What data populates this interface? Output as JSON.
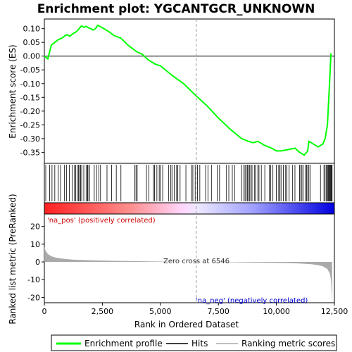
{
  "chart_data": {
    "type": "line",
    "title": "Enrichment plot: YGCANTGCR_UNKNOWN",
    "ylabel_top": "Enrichment score (ES)",
    "ylabel_bottom": "Ranked list metric (PreRanked)",
    "xlabel": "Rank in Ordered Dataset",
    "x_range": [
      0,
      12500
    ],
    "es_ylim": [
      -0.39,
      0.135
    ],
    "es_yticks": [
      "0.10",
      "0.05",
      "0.00",
      "-0.05",
      "-0.10",
      "-0.15",
      "-0.20",
      "-0.25",
      "-0.30",
      "-0.35"
    ],
    "es_ytick_values": [
      0.1,
      0.05,
      0.0,
      -0.05,
      -0.1,
      -0.15,
      -0.2,
      -0.25,
      -0.3,
      -0.35
    ],
    "metric_ylim": [
      -23,
      27
    ],
    "metric_yticks": [
      "20",
      "10",
      "0",
      "-10",
      "-20"
    ],
    "metric_ytick_values": [
      20,
      10,
      0,
      -10,
      -20
    ],
    "xticks": [
      "0",
      "2,500",
      "5,000",
      "7,500",
      "10,000",
      "12,500"
    ],
    "xtick_values": [
      0,
      2500,
      5000,
      7500,
      10000,
      12500
    ],
    "enrichment_profile": {
      "x": [
        0,
        150,
        300,
        450,
        600,
        750,
        900,
        1000,
        1100,
        1200,
        1300,
        1400,
        1500,
        1600,
        1700,
        1800,
        1900,
        2000,
        2100,
        2200,
        2300,
        2400,
        2600,
        2800,
        3000,
        3300,
        3600,
        4000,
        4200,
        4500,
        4800,
        5000,
        5500,
        6000,
        6546,
        7000,
        7500,
        8000,
        8500,
        8800,
        9000,
        9200,
        9500,
        9800,
        10000,
        10200,
        10500,
        10800,
        11000,
        11200,
        11350,
        11400,
        11600,
        11800,
        12000,
        12100,
        12200,
        12280,
        12350
      ],
      "es": [
        0.0,
        -0.01,
        0.04,
        0.05,
        0.06,
        0.065,
        0.075,
        0.078,
        0.072,
        0.08,
        0.085,
        0.09,
        0.1,
        0.11,
        0.105,
        0.108,
        0.103,
        0.1,
        0.095,
        0.1,
        0.112,
        0.108,
        0.098,
        0.088,
        0.075,
        0.065,
        0.04,
        0.015,
        0.008,
        -0.015,
        -0.03,
        -0.035,
        -0.07,
        -0.1,
        -0.145,
        -0.18,
        -0.225,
        -0.265,
        -0.3,
        -0.31,
        -0.315,
        -0.31,
        -0.325,
        -0.335,
        -0.345,
        -0.345,
        -0.34,
        -0.335,
        -0.35,
        -0.36,
        -0.345,
        -0.31,
        -0.32,
        -0.33,
        -0.32,
        -0.3,
        -0.25,
        -0.12,
        0.01
      ]
    },
    "hits_ranks": [
      60,
      230,
      330,
      450,
      600,
      700,
      860,
      960,
      1080,
      1200,
      1300,
      1350,
      1420,
      1470,
      1520,
      1560,
      1610,
      1700,
      1800,
      1860,
      1880,
      1950,
      2150,
      2250,
      2350,
      2420,
      2700,
      2900,
      3100,
      3300,
      3900,
      3950,
      4000,
      4400,
      4500,
      4700,
      4750,
      4850,
      4950,
      5000,
      5100,
      5350,
      5450,
      5500,
      5600,
      5700,
      5750,
      5850,
      6100,
      6350,
      6400,
      6500,
      6600,
      6700,
      6950,
      7050,
      7200,
      7450,
      7550,
      7850,
      7950,
      8100,
      8200,
      8500,
      8600,
      8650,
      8700,
      8750,
      8800,
      8850,
      8900,
      8950,
      9050,
      9100,
      9200,
      9250,
      9350,
      9500,
      9700,
      9750,
      9850,
      10000,
      10100,
      10150,
      10200,
      10300,
      10400,
      10450,
      10550,
      10700,
      10800,
      11000,
      11050,
      11100,
      11150,
      11250,
      11300,
      11350,
      11400,
      11450,
      11900,
      12050,
      12100,
      12150,
      12200,
      12230,
      12260,
      12290,
      12320,
      12350,
      12380,
      12400
    ],
    "metric_profile": {
      "x": [
        0,
        50,
        150,
        300,
        500,
        800,
        1200,
        2000,
        3000,
        4000,
        5000,
        6000,
        6546,
        7500,
        8500,
        9500,
        10500,
        11000,
        11500,
        11800,
        12000,
        12200,
        12300,
        12350,
        12400
      ],
      "y": [
        8.5,
        6.5,
        4.5,
        3.2,
        2.4,
        1.8,
        1.3,
        0.9,
        0.6,
        0.4,
        0.2,
        0.05,
        0.0,
        -0.1,
        -0.25,
        -0.45,
        -0.7,
        -0.9,
        -1.3,
        -1.8,
        -2.5,
        -4.0,
        -6.5,
        -10.0,
        -22.0
      ]
    },
    "zero_cross_label": "Zero cross at 6546",
    "zero_cross_x": 6546,
    "pos_label": "'na_pos' (positively correlated)",
    "neg_label": "'na_neg' (negatively correlated)",
    "colors": {
      "profile": "#00ff00",
      "hits": "#000000",
      "metric_fill": "#aaaaaa",
      "pos_text": "#cc0000",
      "neg_text": "#0000cc",
      "pos_bar": "#ff0000",
      "neg_bar": "#0000ff"
    },
    "legend": {
      "placement": "bottom",
      "entries": [
        "Enrichment profile",
        "Hits",
        "Ranking metric scores"
      ]
    }
  }
}
